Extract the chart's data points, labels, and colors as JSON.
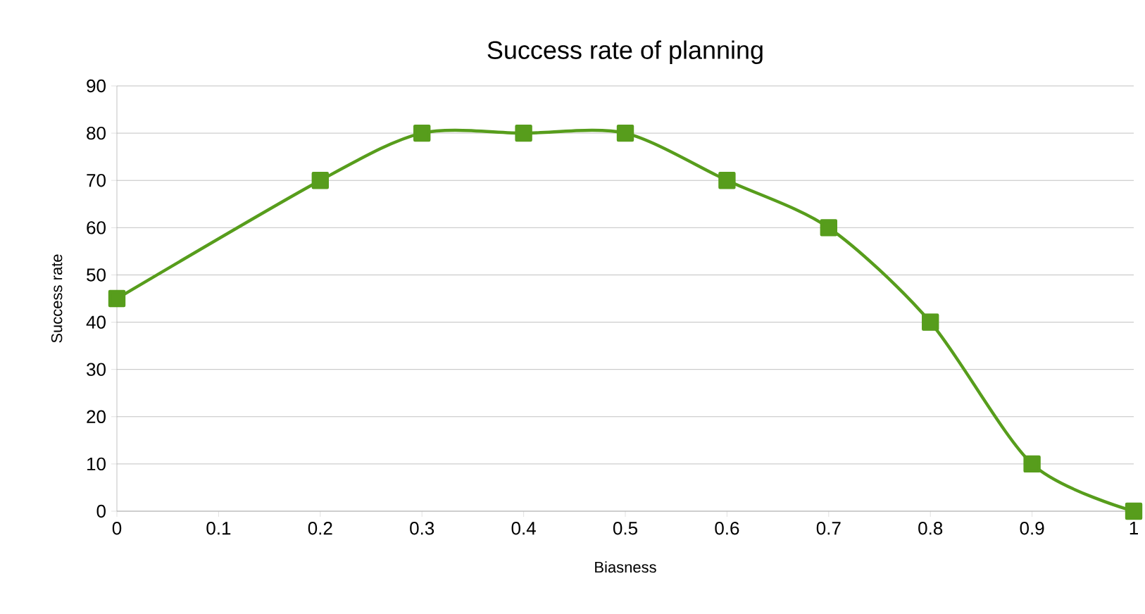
{
  "chart_data": {
    "type": "line",
    "title": "Success rate of planning",
    "xlabel": "Biasness",
    "ylabel": "Success rate",
    "x": [
      0,
      0.2,
      0.3,
      0.4,
      0.5,
      0.6,
      0.7,
      0.8,
      0.9,
      1
    ],
    "series": [
      {
        "color": "#579d1c",
        "values": [
          45,
          70,
          80,
          80,
          80,
          70,
          60,
          40,
          10,
          0
        ]
      }
    ],
    "xlim": [
      0,
      1
    ],
    "xticks": [
      0,
      0.1,
      0.2,
      0.3,
      0.4,
      0.5,
      0.6,
      0.7,
      0.8,
      0.9,
      1
    ],
    "ylim": [
      0,
      90
    ],
    "yticks": [
      0,
      10,
      20,
      30,
      40,
      50,
      60,
      70,
      80,
      90
    ],
    "grid": "y",
    "marker": "square",
    "line_style": "solid"
  }
}
